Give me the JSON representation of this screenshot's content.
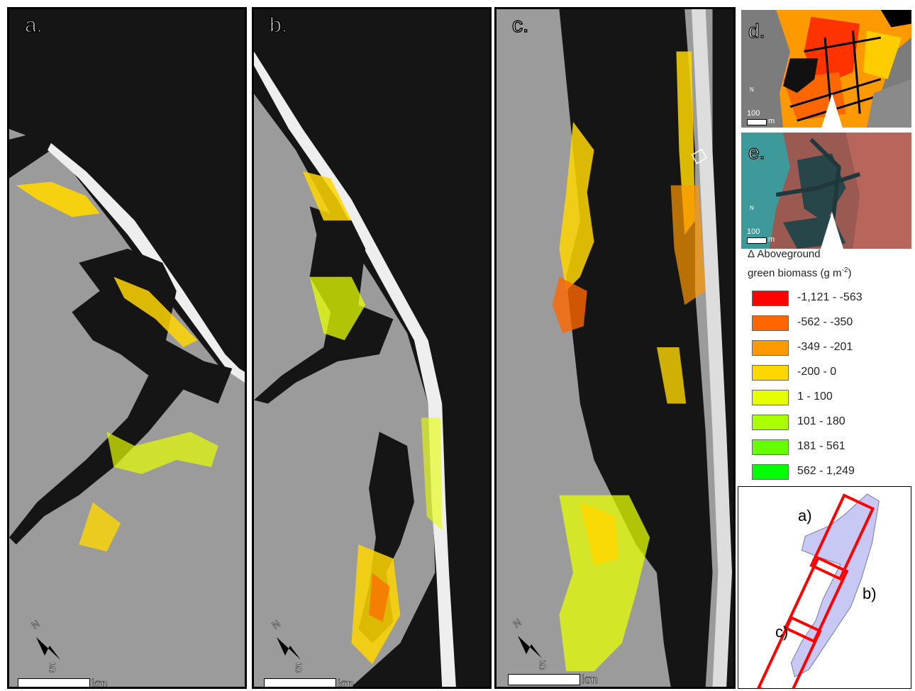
{
  "panels": [
    {
      "label": "a.",
      "scale_value": "5",
      "scale_unit": "km",
      "north": "N"
    },
    {
      "label": "b.",
      "scale_value": "5",
      "scale_unit": "km",
      "north": "N"
    },
    {
      "label": "c.",
      "scale_value": "5",
      "scale_unit": "km",
      "north": "N"
    }
  ],
  "insets": [
    {
      "label": "d.",
      "scale_value": "100",
      "scale_unit": "m",
      "north": "N"
    },
    {
      "label": "e.",
      "scale_value": "100",
      "scale_unit": "m",
      "north": "N"
    }
  ],
  "legend": {
    "title_line1": "Δ Aboveground",
    "title_line2": "green biomass (g m",
    "title_sup": "-2",
    "title_close": ")",
    "classes": [
      {
        "label": "-1,121 - -563",
        "color": "#ff0000"
      },
      {
        "label": "-562 - -350",
        "color": "#ff6600"
      },
      {
        "label": "-349 - -201",
        "color": "#ff9900"
      },
      {
        "label": "-200 - 0",
        "color": "#ffd700"
      },
      {
        "label": "1 - 100",
        "color": "#e6ff00"
      },
      {
        "label": "101 - 180",
        "color": "#aaff00"
      },
      {
        "label": "181 - 561",
        "color": "#66ff00"
      },
      {
        "label": "562 - 1,249",
        "color": "#00ff00"
      }
    ]
  },
  "locator": {
    "labels": [
      "a)",
      "b)",
      "c)"
    ],
    "footprint_color": "#c8c8f5",
    "box_color": "#ff0000"
  },
  "colors": {
    "water": "#111111",
    "land": "#9a9a9a",
    "marsh_loss": "#ffd700",
    "marsh_gain": "#e6ff00"
  }
}
